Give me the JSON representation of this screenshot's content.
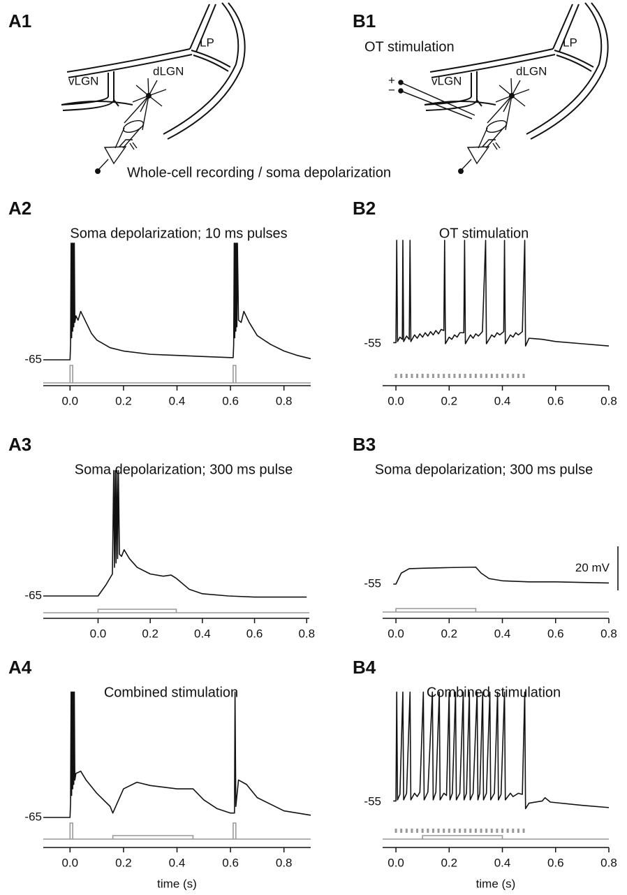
{
  "figure": {
    "panel_labels": [
      "A1",
      "B1"
    ],
    "diagram_labels": {
      "a1": [
        "LP",
        "dLGN",
        "vLGN"
      ],
      "b1": [
        "LP",
        "dLGN",
        "vLGN"
      ]
    },
    "ot_stimulation": "OT stimulation",
    "electrode_polarity": [
      "+",
      "−"
    ],
    "recording": "Whole-cell recording / soma depolarization"
  },
  "chart_data": [
    {
      "type": "line",
      "panel_label": "A2",
      "title": "Soma depolarization; 10 ms pulses",
      "color": "#111",
      "x": [
        -0.1,
        0,
        0.002,
        0.004,
        0.006,
        0.008,
        0.01,
        0.012,
        0.014,
        0.016,
        0.018,
        0.022,
        0.03,
        0.04,
        0.06,
        0.08,
        0.1,
        0.15,
        0.2,
        0.3,
        0.4,
        0.5,
        0.6,
        0.61,
        0.612,
        0.614,
        0.616,
        0.618,
        0.62,
        0.622,
        0.624,
        0.626,
        0.63,
        0.64,
        0.65,
        0.67,
        0.7,
        0.75,
        0.8,
        0.85,
        0.9
      ],
      "values": [
        -65,
        -65,
        -58,
        -12,
        -55,
        -12,
        -52,
        -12,
        -50,
        -12,
        -48,
        -45,
        -47,
        -43,
        -48,
        -53,
        -56,
        -59.5,
        -61,
        -62.5,
        -63,
        -63.5,
        -64,
        -64,
        -58,
        -12,
        -55,
        -12,
        -52,
        -12,
        -50,
        -12,
        -47,
        -48,
        -43,
        -48,
        -54,
        -58,
        -61,
        -63,
        -64.5
      ],
      "xlim": [
        -0.1,
        0.9
      ],
      "xticks": [
        {
          "value": 0,
          "label": "0.0"
        },
        0.2,
        0.4,
        0.6,
        0.8
      ],
      "ylim": [
        -70,
        -10
      ],
      "yticks": [
        -65
      ],
      "stimulus": {
        "color": "#999",
        "pulses": [
          [
            0,
            0.01
          ],
          [
            0.61,
            0.62
          ]
        ]
      }
    },
    {
      "type": "line",
      "panel_label": "B2",
      "title": "OT stimulation",
      "color": "#111",
      "x": [
        -0.01,
        0,
        0.003,
        0.006,
        0.015,
        0.024,
        0.026,
        0.029,
        0.04,
        0.05,
        0.053,
        0.056,
        0.07,
        0.08,
        0.09,
        0.1,
        0.11,
        0.12,
        0.13,
        0.14,
        0.15,
        0.16,
        0.17,
        0.18,
        0.183,
        0.186,
        0.2,
        0.21,
        0.22,
        0.23,
        0.24,
        0.255,
        0.258,
        0.261,
        0.28,
        0.29,
        0.3,
        0.31,
        0.325,
        0.337,
        0.34,
        0.36,
        0.37,
        0.38,
        0.39,
        0.405,
        0.408,
        0.411,
        0.43,
        0.44,
        0.45,
        0.46,
        0.475,
        0.484,
        0.487,
        0.5,
        0.55,
        0.6,
        0.7,
        0.8
      ],
      "values": [
        -54.5,
        -54.5,
        -8,
        -54,
        -52,
        -53,
        -8,
        -54,
        -51.5,
        -53,
        -8,
        -54,
        -51,
        -52.5,
        -50.5,
        -52,
        -50,
        -51.5,
        -49.5,
        -51,
        -49,
        -50.5,
        -48.5,
        -49,
        -8,
        -55,
        -52,
        -53,
        -51,
        -52,
        -50,
        -50,
        -8,
        -55,
        -51,
        -52.5,
        -50.5,
        -51.5,
        -49.5,
        -8,
        -55,
        -51,
        -52,
        -50,
        -51,
        -49.5,
        -8,
        -55,
        -51,
        -52,
        -50,
        -51,
        -49.5,
        -8,
        -56,
        -52.5,
        -53,
        -54,
        -55,
        -56
      ],
      "xlim": [
        -0.05,
        0.8
      ],
      "xticks": [
        {
          "value": 0,
          "label": "0.0"
        },
        0.2,
        0.4,
        0.6,
        0.8
      ],
      "ylim": [
        -60,
        -5
      ],
      "yticks": [
        -55
      ],
      "stimulus": {
        "color": "#999",
        "trains": [
          0,
          0.02,
          0.04,
          0.06,
          0.08,
          0.1,
          0.12,
          0.14,
          0.16,
          0.18,
          0.2,
          0.22,
          0.24,
          0.26,
          0.28,
          0.3,
          0.32,
          0.34,
          0.36,
          0.38,
          0.4,
          0.42,
          0.44,
          0.46,
          0.48
        ]
      }
    },
    {
      "type": "line",
      "panel_label": "A3",
      "title": "Soma depolarization; 300 ms pulse",
      "color": "#111",
      "x": [
        -0.21,
        -0.1,
        0,
        0.03,
        0.055,
        0.06,
        0.063,
        0.066,
        0.069,
        0.072,
        0.075,
        0.078,
        0.082,
        0.09,
        0.1,
        0.12,
        0.15,
        0.2,
        0.25,
        0.28,
        0.3,
        0.35,
        0.4,
        0.5,
        0.6,
        0.8
      ],
      "values": [
        -65,
        -65,
        -65,
        -60,
        -55,
        -8,
        -52,
        -8,
        -50,
        -8,
        -48,
        -8,
        -46,
        -47,
        -44,
        -48,
        -52,
        -55,
        -56,
        -55.5,
        -57,
        -62,
        -64,
        -65,
        -65.5,
        -65.5
      ],
      "xlim": [
        -0.21,
        0.81
      ],
      "xticks": [
        {
          "value": 0,
          "label": "0.0"
        },
        0.2,
        0.4,
        0.6,
        0.8
      ],
      "ylim": [
        -70,
        -5
      ],
      "yticks": [
        -65
      ],
      "stimulus": {
        "color": "#999",
        "steps": [
          [
            0,
            0.3
          ]
        ]
      }
    },
    {
      "type": "line",
      "panel_label": "B3",
      "title": "Soma depolarization; 300 ms pulse",
      "color": "#111",
      "x": [
        -0.01,
        0,
        0.02,
        0.05,
        0.1,
        0.2,
        0.3,
        0.32,
        0.35,
        0.4,
        0.5,
        0.6,
        0.8
      ],
      "values": [
        -55,
        -55,
        -50,
        -48,
        -47.8,
        -47.5,
        -47.3,
        -50,
        -52.5,
        -53.5,
        -54,
        -54,
        -54.5
      ],
      "xlim": [
        -0.05,
        0.8
      ],
      "xticks": [
        {
          "value": 0,
          "label": "0.0"
        },
        0.2,
        0.4,
        0.6,
        0.8
      ],
      "ylim": [
        -60,
        -40
      ],
      "yticks": [
        -55
      ],
      "stimulus": {
        "color": "#999",
        "steps": [
          [
            0,
            0.3
          ]
        ]
      }
    },
    {
      "type": "line",
      "panel_label": "A4",
      "title": "Combined stimulation",
      "color": "#111",
      "xlabel": "time (s)",
      "x": [
        -0.1,
        0,
        0.002,
        0.004,
        0.006,
        0.008,
        0.01,
        0.012,
        0.014,
        0.016,
        0.018,
        0.022,
        0.04,
        0.06,
        0.1,
        0.15,
        0.16,
        0.2,
        0.25,
        0.3,
        0.4,
        0.46,
        0.5,
        0.55,
        0.6,
        0.615,
        0.617,
        0.62,
        0.63,
        0.66,
        0.7,
        0.8,
        0.9
      ],
      "values": [
        -65,
        -65,
        -58,
        -8,
        -55,
        -8,
        -52,
        -8,
        -50,
        -8,
        -48,
        -45,
        -44,
        -48,
        -54,
        -60,
        -63,
        -52,
        -49,
        -50.5,
        -52,
        -52,
        -57,
        -61,
        -63,
        -63,
        -8,
        -60,
        -48,
        -50,
        -56,
        -62,
        -64
      ],
      "xlim": [
        -0.1,
        0.9
      ],
      "xticks": [
        {
          "value": 0,
          "label": "0.0"
        },
        0.2,
        0.4,
        0.6,
        0.8
      ],
      "ylim": [
        -70,
        -5
      ],
      "yticks": [
        -65
      ],
      "stimulus": {
        "color": "#999",
        "pulses": [
          [
            0,
            0.01
          ],
          [
            0.61,
            0.62
          ]
        ],
        "steps": [
          [
            0.16,
            0.46
          ]
        ]
      }
    },
    {
      "type": "line",
      "panel_label": "B4",
      "title": "Combined stimulation",
      "color": "#111",
      "xlabel": "time (s)",
      "x": [
        -0.01,
        0,
        0.003,
        0.006,
        0.015,
        0.026,
        0.029,
        0.04,
        0.053,
        0.056,
        0.07,
        0.08,
        0.09,
        0.103,
        0.106,
        0.12,
        0.137,
        0.14,
        0.15,
        0.163,
        0.166,
        0.18,
        0.19,
        0.2,
        0.203,
        0.212,
        0.224,
        0.227,
        0.24,
        0.253,
        0.256,
        0.265,
        0.276,
        0.279,
        0.29,
        0.305,
        0.308,
        0.315,
        0.326,
        0.329,
        0.34,
        0.353,
        0.356,
        0.37,
        0.382,
        0.385,
        0.395,
        0.408,
        0.411,
        0.43,
        0.44,
        0.46,
        0.475,
        0.484,
        0.487,
        0.5,
        0.55,
        0.56,
        0.58,
        0.7,
        0.8
      ],
      "values": [
        -54.5,
        -54.5,
        -5,
        -54,
        -51.5,
        -5,
        -54,
        -51,
        -5,
        -54,
        -51,
        -52.5,
        -50.5,
        -5,
        -54,
        -50.5,
        -5,
        -54,
        -50.5,
        -5,
        -54,
        -51,
        -52,
        -5,
        -54,
        -51,
        -5,
        -54,
        -51,
        -5,
        -54,
        -51,
        -5,
        -54,
        -51,
        -5,
        -54,
        -51,
        -5,
        -54,
        -51,
        -5,
        -54,
        -51,
        -5,
        -54,
        -51.5,
        -5,
        -54,
        -51,
        -52.5,
        -51,
        -51.5,
        -5,
        -58,
        -55.5,
        -54.5,
        -53,
        -55,
        -56.5,
        -57.5
      ],
      "xlim": [
        -0.05,
        0.8
      ],
      "xticks": [
        {
          "value": 0,
          "label": "0.0"
        },
        0.2,
        0.4,
        0.6,
        0.8
      ],
      "ylim": [
        -60,
        0
      ],
      "yticks": [
        -55
      ],
      "scale_bar": {
        "value": 20,
        "label": "20 mV"
      },
      "stimulus": {
        "color": "#999",
        "trains": [
          0,
          0.02,
          0.04,
          0.06,
          0.08,
          0.1,
          0.12,
          0.14,
          0.16,
          0.18,
          0.2,
          0.22,
          0.24,
          0.26,
          0.28,
          0.3,
          0.32,
          0.34,
          0.36,
          0.38,
          0.4,
          0.42,
          0.44,
          0.46,
          0.48
        ],
        "steps": [
          [
            0.1,
            0.4
          ]
        ]
      }
    }
  ]
}
